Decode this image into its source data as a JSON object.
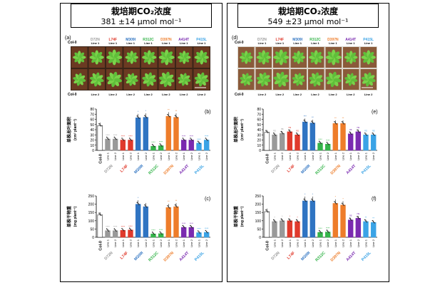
{
  "lines": [
    {
      "name": "Col-0",
      "color": "#000000"
    },
    {
      "name": "D72N",
      "color": "#999999"
    },
    {
      "name": "L74F",
      "color": "#e03a2c"
    },
    {
      "name": "M309I",
      "color": "#2f74c2"
    },
    {
      "name": "R312C",
      "color": "#35b44a"
    },
    {
      "name": "D397N",
      "color": "#ee7d2a"
    },
    {
      "name": "A414T",
      "color": "#7a2ab0"
    },
    {
      "name": "P415L",
      "color": "#3aa3e6"
    }
  ],
  "line_sub": [
    "Line 1",
    "Line 2"
  ],
  "photo_line1": "Line 1",
  "photo_line2": "Line 2",
  "photo_col0": "Col-0",
  "panels": [
    {
      "id": "left",
      "header_title": "栽培期CO₂浓度",
      "header_value": "381 ±14 μmol mol⁻¹",
      "photo_label": "(a)",
      "photo_style": "dark",
      "chart_area": {
        "label": "(b)",
        "ylabel1": "单株总叶面积",
        "ylabel2": "(cm² plant⁻¹)",
        "yticks": [
          "0",
          "10",
          "20",
          "30",
          "40",
          "50",
          "60",
          "70",
          "80"
        ],
        "ymax": 80
      },
      "chart_mass": {
        "label": "(c)",
        "ylabel1": "单株干物重",
        "ylabel2": "(mg plant⁻¹)",
        "yticks": [
          "0",
          "50",
          "100",
          "150",
          "200",
          "250"
        ],
        "ymax": 250
      }
    },
    {
      "id": "right",
      "header_title": "栽培期CO₂浓度",
      "header_value": "549 ±23 μmol mol⁻¹",
      "photo_label": "(d)",
      "photo_style": "light",
      "chart_area": {
        "label": "(e)",
        "ylabel1": "单株总叶面积",
        "ylabel2": "(cm² plant⁻¹)",
        "yticks": [
          "0",
          "10",
          "20",
          "30",
          "40",
          "50",
          "60",
          "70",
          "80"
        ],
        "ymax": 80
      },
      "chart_mass": {
        "label": "(f)",
        "ylabel1": "单株干物重",
        "ylabel2": "(mg plant⁻¹)",
        "yticks": [
          "0",
          "50",
          "100",
          "150",
          "200",
          "250"
        ],
        "ymax": 250
      }
    }
  ],
  "chart_data": [
    {
      "type": "bar",
      "title": "(b)",
      "ylabel": "单株总叶面积 (cm² plant⁻¹)",
      "ylim": [
        0,
        80
      ],
      "categories": [
        "Col-0",
        "D72N Line 1",
        "D72N Line 2",
        "L74F Line 1",
        "L74F Line 2",
        "M309I Line 1",
        "M309I Line 2",
        "R312C Line 1",
        "R312C Line 2",
        "D397N Line 1",
        "D397N Line 2",
        "A414T Line 1",
        "A414T Line 2",
        "P415L Line 1",
        "P415L Line 2"
      ],
      "values": [
        48,
        22,
        22,
        20,
        20,
        63,
        64,
        8,
        9,
        66,
        64,
        20,
        20,
        14,
        20
      ],
      "annotations": [
        "",
        "****",
        "****",
        "****",
        "****",
        "*",
        "*",
        "****",
        "****",
        "**",
        "**",
        "****",
        "****",
        "****",
        "****"
      ]
    },
    {
      "type": "bar",
      "title": "(c)",
      "ylabel": "单株干物重 (mg plant⁻¹)",
      "ylim": [
        0,
        250
      ],
      "categories": [
        "Col-0",
        "D72N Line 1",
        "D72N Line 2",
        "L74F Line 1",
        "L74F Line 2",
        "M309I Line 1",
        "M309I Line 2",
        "R312C Line 1",
        "R312C Line 2",
        "D397N Line 1",
        "D397N Line 2",
        "A414T Line 1",
        "A414T Line 2",
        "P415L Line 1",
        "P415L Line 2"
      ],
      "values": [
        135,
        40,
        40,
        42,
        44,
        200,
        185,
        20,
        22,
        180,
        185,
        60,
        60,
        28,
        30
      ],
      "annotations": [
        "",
        "****",
        "****",
        "****",
        "****",
        "*",
        "",
        "****",
        "****",
        "**",
        "**",
        "****",
        "****",
        "****",
        "****"
      ]
    },
    {
      "type": "bar",
      "title": "(e)",
      "ylabel": "单株总叶面积 (cm² plant⁻¹)",
      "ylim": [
        0,
        80
      ],
      "categories": [
        "Col-0",
        "D72N Line 1",
        "D72N Line 2",
        "L74F Line 1",
        "L74F Line 2",
        "M309I Line 1",
        "M309I Line 2",
        "R312C Line 1",
        "R312C Line 2",
        "D397N Line 1",
        "D397N Line 2",
        "A414T Line 1",
        "A414T Line 2",
        "P415L Line 1",
        "P415L Line 2"
      ],
      "values": [
        35,
        30,
        33,
        36,
        30,
        55,
        53,
        14,
        12,
        52,
        52,
        32,
        36,
        30,
        30
      ],
      "annotations": [
        "",
        "ns",
        "ns",
        "ns",
        "ns",
        "***",
        "**",
        "****",
        "****",
        "**",
        "**",
        "ns",
        "ns",
        "ns",
        "ns"
      ]
    },
    {
      "type": "bar",
      "title": "(f)",
      "ylabel": "单株干物重 (mg plant⁻¹)",
      "ylim": [
        0,
        250
      ],
      "categories": [
        "Col-0",
        "D72N Line 1",
        "D72N Line 2",
        "L74F Line 1",
        "L74F Line 2",
        "M309I Line 1",
        "M309I Line 2",
        "R312C Line 1",
        "R312C Line 2",
        "D397N Line 1",
        "D397N Line 2",
        "A414T Line 1",
        "A414T Line 2",
        "P415L Line 1",
        "P415L Line 2"
      ],
      "values": [
        155,
        95,
        100,
        100,
        95,
        220,
        220,
        30,
        32,
        205,
        195,
        105,
        115,
        95,
        90
      ],
      "annotations": [
        "",
        "*",
        "*",
        "*",
        "*",
        "*",
        "*",
        "****",
        "****",
        "*",
        "*",
        "ns",
        "ns",
        "**",
        "**"
      ]
    }
  ]
}
